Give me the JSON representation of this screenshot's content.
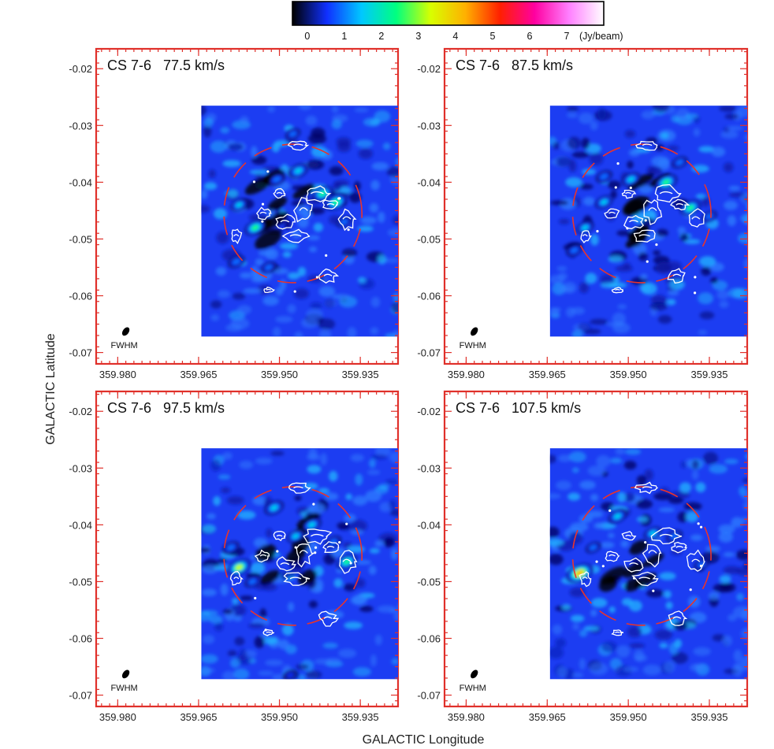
{
  "colorbar": {
    "ticks": [
      "0",
      "1",
      "2",
      "3",
      "4",
      "5",
      "6",
      "7"
    ],
    "unit": "(Jy/beam)",
    "range": [
      -0.4,
      8.0
    ],
    "stops": [
      "#000000",
      "#1030ff",
      "#00c8ff",
      "#00ff80",
      "#d8ff00",
      "#ffb000",
      "#ff2000",
      "#ff00a0",
      "#ff80ff",
      "#ffffff"
    ]
  },
  "axes": {
    "xlabel": "GALACTIC Longitude",
    "ylabel": "GALACTIC Latitude",
    "x_ticks_deg": [
      359.98,
      359.965,
      359.95,
      359.935
    ],
    "x_tick_labels": [
      "359.980",
      "359.965",
      "359.950",
      "359.935"
    ],
    "y_ticks_deg": [
      -0.02,
      -0.03,
      -0.04,
      -0.05,
      -0.06,
      -0.07
    ],
    "y_tick_labels": [
      "-0.02",
      "-0.03",
      "-0.04",
      "-0.05",
      "-0.06",
      "-0.07"
    ],
    "deg_symbol": "°"
  },
  "beam_label": "FWHM",
  "chart_data": [
    {
      "type": "heatmap",
      "title": "CS 7-6   77.5 km/s",
      "xlabel": "GALACTIC Longitude",
      "ylabel": "GALACTIC Latitude",
      "xlim": [
        359.984,
        359.928
      ],
      "ylim": [
        -0.072,
        -0.0165
      ],
      "map_extent": {
        "x": [
          359.9645,
          359.9265
        ],
        "y": [
          -0.0265,
          -0.0672
        ]
      },
      "unit": "Jy/beam",
      "peaks": [
        {
          "l": 359.9395,
          "b": -0.0435,
          "value": 3.2
        },
        {
          "l": 359.942,
          "b": -0.042,
          "value": 2.6
        },
        {
          "l": 359.9465,
          "b": -0.038,
          "value": 2.4
        },
        {
          "l": 359.9545,
          "b": -0.048,
          "value": 2.9
        },
        {
          "l": 359.9575,
          "b": -0.044,
          "value": 1.6
        },
        {
          "l": 359.9505,
          "b": -0.0395,
          "value": 1.5
        },
        {
          "l": 359.958,
          "b": -0.054,
          "value": 1.5
        },
        {
          "l": 359.952,
          "b": -0.055,
          "value": 1.0
        },
        {
          "l": 359.9475,
          "b": -0.0315,
          "value": 0.9
        },
        {
          "l": 359.938,
          "b": -0.047,
          "value": 1.0
        }
      ]
    },
    {
      "type": "heatmap",
      "title": "CS 7-6   87.5 km/s",
      "xlabel": "GALACTIC Longitude",
      "ylabel": "GALACTIC Latitude",
      "xlim": [
        359.984,
        359.928
      ],
      "ylim": [
        -0.072,
        -0.0165
      ],
      "map_extent": {
        "x": [
          359.9645,
          359.9265
        ],
        "y": [
          -0.0265,
          -0.0672
        ]
      },
      "unit": "Jy/beam",
      "peaks": [
        {
          "l": 359.943,
          "b": -0.04,
          "value": 3.1
        },
        {
          "l": 359.9385,
          "b": -0.0445,
          "value": 2.7
        },
        {
          "l": 359.9495,
          "b": -0.0395,
          "value": 2.1
        },
        {
          "l": 359.9545,
          "b": -0.0435,
          "value": 1.8
        },
        {
          "l": 359.958,
          "b": -0.048,
          "value": 1.7
        },
        {
          "l": 359.9545,
          "b": -0.039,
          "value": 1.4
        },
        {
          "l": 359.96,
          "b": -0.052,
          "value": 1.3
        },
        {
          "l": 359.9405,
          "b": -0.0365,
          "value": 1.2
        },
        {
          "l": 359.935,
          "b": -0.046,
          "value": 1.0
        }
      ]
    },
    {
      "type": "heatmap",
      "title": "CS 7-6   97.5 km/s",
      "xlabel": "GALACTIC Longitude",
      "ylabel": "GALACTIC Latitude",
      "xlim": [
        359.984,
        359.928
      ],
      "ylim": [
        -0.072,
        -0.0165
      ],
      "map_extent": {
        "x": [
          359.9645,
          359.9265
        ],
        "y": [
          -0.0265,
          -0.0672
        ]
      },
      "unit": "Jy/beam",
      "peaks": [
        {
          "l": 359.9575,
          "b": -0.0475,
          "value": 3.4
        },
        {
          "l": 359.951,
          "b": -0.037,
          "value": 2.3
        },
        {
          "l": 359.9375,
          "b": -0.0465,
          "value": 2.6
        },
        {
          "l": 359.944,
          "b": -0.04,
          "value": 2.2
        },
        {
          "l": 359.947,
          "b": -0.042,
          "value": 1.7
        },
        {
          "l": 359.959,
          "b": -0.044,
          "value": 1.5
        },
        {
          "l": 359.955,
          "b": -0.05,
          "value": 1.2
        },
        {
          "l": 359.94,
          "b": -0.043,
          "value": 1.3
        },
        {
          "l": 359.948,
          "b": -0.0665,
          "value": 0.7
        }
      ]
    },
    {
      "type": "heatmap",
      "title": "CS 7-6   107.5 km/s",
      "xlabel": "GALACTIC Longitude",
      "ylabel": "GALACTIC Latitude",
      "xlim": [
        359.984,
        359.928
      ],
      "ylim": [
        -0.072,
        -0.0165
      ],
      "map_extent": {
        "x": [
          359.9645,
          359.9265
        ],
        "y": [
          -0.0265,
          -0.0672
        ]
      },
      "unit": "Jy/beam",
      "peaks": [
        {
          "l": 359.959,
          "b": -0.0485,
          "value": 4.3
        },
        {
          "l": 359.952,
          "b": -0.0385,
          "value": 2.0
        },
        {
          "l": 359.9455,
          "b": -0.0415,
          "value": 1.8
        },
        {
          "l": 359.9415,
          "b": -0.042,
          "value": 1.4
        },
        {
          "l": 359.9565,
          "b": -0.044,
          "value": 1.0
        },
        {
          "l": 359.9365,
          "b": -0.047,
          "value": 0.9
        }
      ]
    }
  ]
}
